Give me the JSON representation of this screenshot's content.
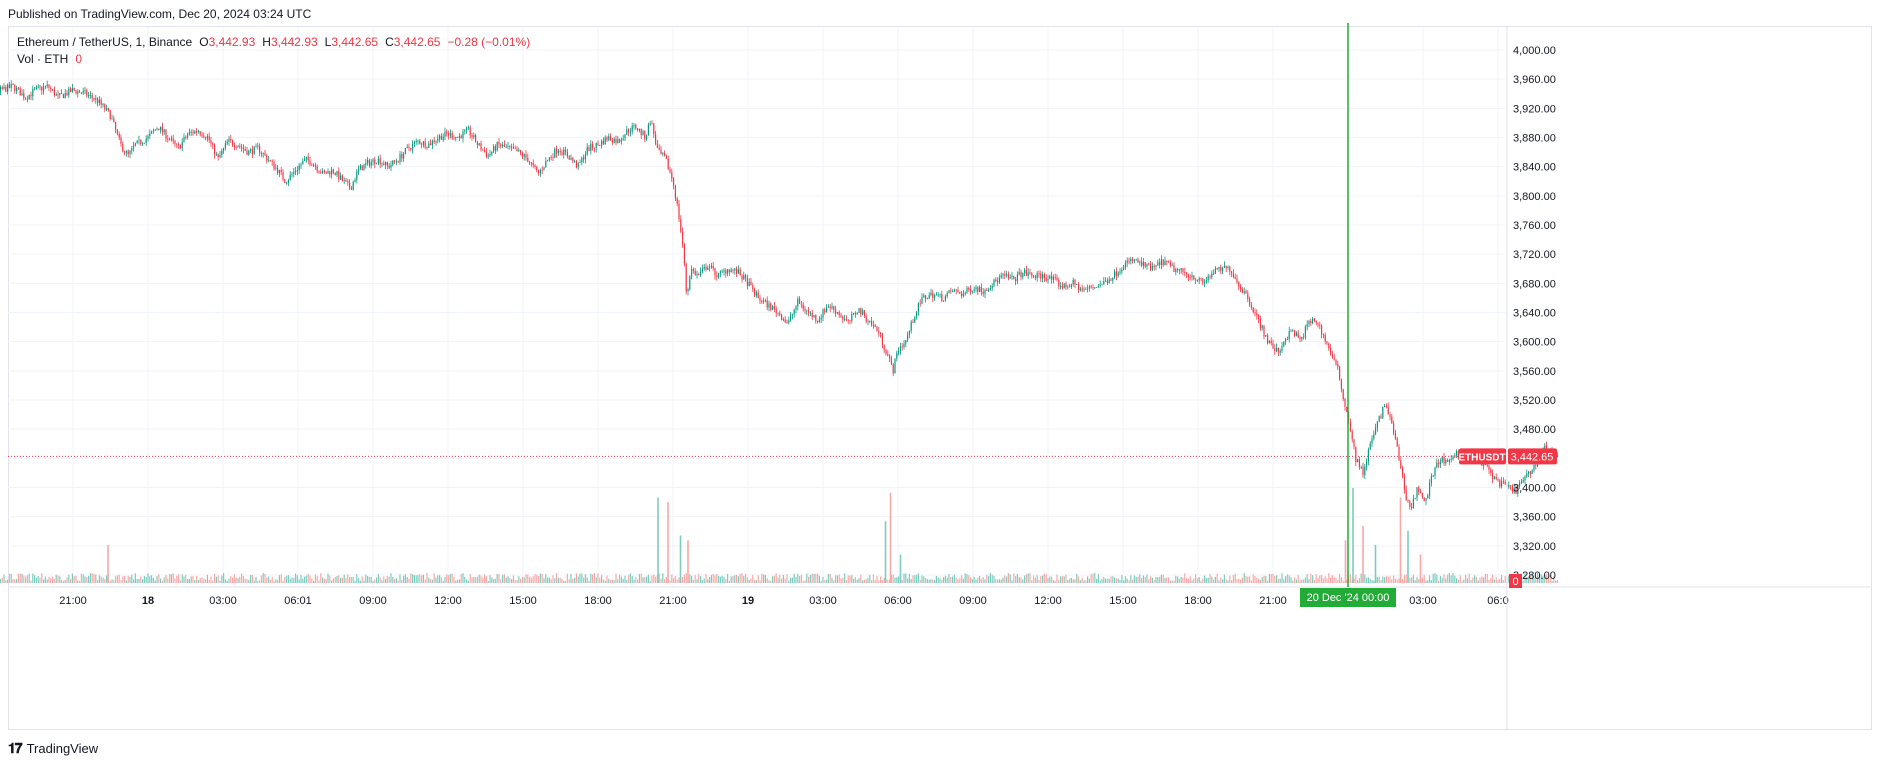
{
  "header": {
    "published": "Published on TradingView.com, Dec 20, 2024 03:24 UTC"
  },
  "legend": {
    "symbol": "Ethereum / TetherUS, 1, Binance",
    "o_label": "O",
    "o_value": "3,442.93",
    "h_label": "H",
    "h_value": "3,442.93",
    "l_label": "L",
    "l_value": "3,442.65",
    "c_label": "C",
    "c_value": "3,442.65",
    "change": "−0.28 (−0.01%)",
    "vol_label": "Vol · ETH",
    "vol_value": "0"
  },
  "footer": {
    "brand": "TradingView"
  },
  "colors": {
    "up": "#089981",
    "down": "#f23645",
    "vol_up": "#7ccdc0",
    "vol_down": "#f7a9a7",
    "crosshair": "#22ab36",
    "grid": "#f0f3fa"
  },
  "chart_data": {
    "type": "candlestick",
    "symbol": "ETHUSDT",
    "interval": "1",
    "last_price": 3442.65,
    "last_price_label": "3,442.65",
    "symbol_tag": "ETHUSDT",
    "volume_last_label": "0",
    "ylim": [
      3260,
      4020
    ],
    "y_ticks": [
      {
        "v": 4000,
        "label": "4,000.00"
      },
      {
        "v": 3960,
        "label": "3,960.00"
      },
      {
        "v": 3920,
        "label": "3,920.00"
      },
      {
        "v": 3880,
        "label": "3,880.00"
      },
      {
        "v": 3840,
        "label": "3,840.00"
      },
      {
        "v": 3800,
        "label": "3,800.00"
      },
      {
        "v": 3760,
        "label": "3,760.00"
      },
      {
        "v": 3720,
        "label": "3,720.00"
      },
      {
        "v": 3680,
        "label": "3,680.00"
      },
      {
        "v": 3640,
        "label": "3,640.00"
      },
      {
        "v": 3600,
        "label": "3,600.00"
      },
      {
        "v": 3560,
        "label": "3,560.00"
      },
      {
        "v": 3520,
        "label": "3,520.00"
      },
      {
        "v": 3480,
        "label": "3,480.00"
      },
      {
        "v": 3440,
        "label": "3,440.00"
      },
      {
        "v": 3400,
        "label": "3,400.00"
      },
      {
        "v": 3360,
        "label": "3,360.00"
      },
      {
        "v": 3320,
        "label": "3,320.00"
      },
      {
        "v": 3280,
        "label": "3,280.00"
      }
    ],
    "x_range_hours": [
      -31.2,
      28.0
    ],
    "x_ticks": [
      {
        "h": -27,
        "label": "21:00"
      },
      {
        "h": -24,
        "label": "18",
        "bold": true
      },
      {
        "h": -21,
        "label": "03:00"
      },
      {
        "h": -18,
        "label": "06:01"
      },
      {
        "h": -15,
        "label": "09:00"
      },
      {
        "h": -12,
        "label": "12:00"
      },
      {
        "h": -9,
        "label": "15:00"
      },
      {
        "h": -6,
        "label": "18:00"
      },
      {
        "h": -3,
        "label": "21:00"
      },
      {
        "h": 0,
        "label": "19",
        "bold": true
      },
      {
        "h": 3,
        "label": "03:00"
      },
      {
        "h": 6,
        "label": "06:00"
      },
      {
        "h": 9,
        "label": "09:00"
      },
      {
        "h": 12,
        "label": "12:00"
      },
      {
        "h": 15,
        "label": "15:00"
      },
      {
        "h": 18,
        "label": "18:00"
      },
      {
        "h": 21,
        "label": "21:00"
      },
      {
        "h": 27,
        "label": "03:00"
      },
      {
        "h": 30,
        "label": "06:0"
      }
    ],
    "crosshair": {
      "h": 24,
      "label": "20 Dec '24   00:00"
    },
    "price_path": [
      [
        -31.2,
        3955
      ],
      [
        -30.7,
        3940
      ],
      [
        -30.3,
        3925
      ],
      [
        -29.9,
        3945
      ],
      [
        -29.4,
        3950
      ],
      [
        -28.9,
        3935
      ],
      [
        -28.5,
        3945
      ],
      [
        -28.0,
        3950
      ],
      [
        -27.6,
        3935
      ],
      [
        -27.0,
        3945
      ],
      [
        -26.5,
        3940
      ],
      [
        -26.0,
        3930
      ],
      [
        -25.5,
        3910
      ],
      [
        -25.1,
        3870
      ],
      [
        -24.8,
        3855
      ],
      [
        -24.5,
        3870
      ],
      [
        -24.0,
        3880
      ],
      [
        -23.6,
        3895
      ],
      [
        -23.2,
        3880
      ],
      [
        -22.8,
        3865
      ],
      [
        -22.4,
        3885
      ],
      [
        -22.0,
        3890
      ],
      [
        -21.6,
        3880
      ],
      [
        -21.2,
        3850
      ],
      [
        -20.8,
        3875
      ],
      [
        -20.4,
        3870
      ],
      [
        -20.0,
        3860
      ],
      [
        -19.6,
        3865
      ],
      [
        -19.2,
        3850
      ],
      [
        -18.8,
        3835
      ],
      [
        -18.5,
        3820
      ],
      [
        -18.1,
        3835
      ],
      [
        -17.7,
        3850
      ],
      [
        -17.4,
        3845
      ],
      [
        -17.0,
        3830
      ],
      [
        -16.6,
        3835
      ],
      [
        -16.2,
        3820
      ],
      [
        -15.9,
        3810
      ],
      [
        -15.6,
        3835
      ],
      [
        -15.2,
        3845
      ],
      [
        -14.8,
        3850
      ],
      [
        -14.4,
        3840
      ],
      [
        -14.0,
        3850
      ],
      [
        -13.6,
        3865
      ],
      [
        -13.2,
        3875
      ],
      [
        -12.8,
        3870
      ],
      [
        -12.4,
        3880
      ],
      [
        -12.0,
        3885
      ],
      [
        -11.6,
        3880
      ],
      [
        -11.2,
        3890
      ],
      [
        -10.8,
        3870
      ],
      [
        -10.4,
        3855
      ],
      [
        -10.0,
        3870
      ],
      [
        -9.6,
        3865
      ],
      [
        -9.2,
        3860
      ],
      [
        -8.8,
        3850
      ],
      [
        -8.4,
        3830
      ],
      [
        -8.0,
        3850
      ],
      [
        -7.6,
        3865
      ],
      [
        -7.2,
        3855
      ],
      [
        -6.8,
        3840
      ],
      [
        -6.4,
        3865
      ],
      [
        -6.0,
        3870
      ],
      [
        -5.6,
        3880
      ],
      [
        -5.2,
        3875
      ],
      [
        -4.8,
        3890
      ],
      [
        -4.5,
        3895
      ],
      [
        -4.1,
        3880
      ],
      [
        -3.9,
        3905
      ],
      [
        -3.6,
        3860
      ],
      [
        -3.3,
        3850
      ],
      [
        -3.0,
        3820
      ],
      [
        -2.8,
        3780
      ],
      [
        -2.6,
        3730
      ],
      [
        -2.45,
        3660
      ],
      [
        -2.3,
        3700
      ],
      [
        -2.0,
        3690
      ],
      [
        -1.6,
        3705
      ],
      [
        -1.2,
        3690
      ],
      [
        -0.8,
        3700
      ],
      [
        -0.4,
        3695
      ],
      [
        0.0,
        3680
      ],
      [
        0.4,
        3660
      ],
      [
        0.8,
        3650
      ],
      [
        1.2,
        3640
      ],
      [
        1.6,
        3625
      ],
      [
        2.0,
        3655
      ],
      [
        2.4,
        3640
      ],
      [
        2.8,
        3630
      ],
      [
        3.2,
        3650
      ],
      [
        3.6,
        3640
      ],
      [
        4.0,
        3625
      ],
      [
        4.4,
        3645
      ],
      [
        4.8,
        3630
      ],
      [
        5.2,
        3615
      ],
      [
        5.6,
        3580
      ],
      [
        5.8,
        3560
      ],
      [
        6.0,
        3590
      ],
      [
        6.3,
        3600
      ],
      [
        6.7,
        3640
      ],
      [
        7.0,
        3660
      ],
      [
        7.4,
        3665
      ],
      [
        7.8,
        3660
      ],
      [
        8.2,
        3670
      ],
      [
        8.6,
        3665
      ],
      [
        9.0,
        3675
      ],
      [
        9.4,
        3670
      ],
      [
        9.8,
        3680
      ],
      [
        10.2,
        3690
      ],
      [
        10.6,
        3685
      ],
      [
        11.0,
        3695
      ],
      [
        11.4,
        3690
      ],
      [
        11.8,
        3690
      ],
      [
        12.2,
        3685
      ],
      [
        12.6,
        3675
      ],
      [
        13.0,
        3680
      ],
      [
        13.4,
        3670
      ],
      [
        13.8,
        3675
      ],
      [
        14.2,
        3680
      ],
      [
        14.6,
        3690
      ],
      [
        15.0,
        3705
      ],
      [
        15.4,
        3712
      ],
      [
        15.8,
        3705
      ],
      [
        16.2,
        3700
      ],
      [
        16.6,
        3710
      ],
      [
        17.0,
        3700
      ],
      [
        17.4,
        3695
      ],
      [
        17.8,
        3690
      ],
      [
        18.2,
        3680
      ],
      [
        18.6,
        3695
      ],
      [
        19.0,
        3700
      ],
      [
        19.3,
        3700
      ],
      [
        19.6,
        3680
      ],
      [
        20.0,
        3660
      ],
      [
        20.4,
        3630
      ],
      [
        20.8,
        3600
      ],
      [
        21.2,
        3585
      ],
      [
        21.5,
        3605
      ],
      [
        21.8,
        3615
      ],
      [
        22.1,
        3600
      ],
      [
        22.4,
        3625
      ],
      [
        22.7,
        3630
      ],
      [
        23.0,
        3610
      ],
      [
        23.3,
        3585
      ],
      [
        23.6,
        3560
      ],
      [
        23.9,
        3510
      ],
      [
        24.1,
        3480
      ],
      [
        24.3,
        3440
      ],
      [
        24.6,
        3420
      ],
      [
        24.9,
        3460
      ],
      [
        25.2,
        3490
      ],
      [
        25.5,
        3515
      ],
      [
        25.8,
        3480
      ],
      [
        26.1,
        3430
      ],
      [
        26.3,
        3390
      ],
      [
        26.5,
        3370
      ],
      [
        26.8,
        3400
      ],
      [
        27.1,
        3380
      ],
      [
        27.4,
        3420
      ],
      [
        27.7,
        3440
      ],
      [
        28.0,
        3430
      ],
      [
        28.3,
        3450
      ],
      [
        28.6,
        3435
      ],
      [
        28.9,
        3445
      ],
      [
        29.2,
        3440
      ],
      [
        29.5,
        3430
      ],
      [
        29.8,
        3415
      ],
      [
        30.1,
        3405
      ],
      [
        30.4,
        3400
      ],
      [
        30.7,
        3395
      ],
      [
        31.0,
        3410
      ],
      [
        31.3,
        3420
      ],
      [
        31.6,
        3440
      ],
      [
        31.9,
        3455
      ],
      [
        32.2,
        3448
      ],
      [
        32.4,
        3442.65
      ]
    ],
    "volume_spikes": [
      {
        "h": -25.6,
        "v": 40
      },
      {
        "h": -3.6,
        "v": 90
      },
      {
        "h": -3.2,
        "v": 85
      },
      {
        "h": -2.7,
        "v": 50
      },
      {
        "h": -2.4,
        "v": 45
      },
      {
        "h": 5.5,
        "v": 65
      },
      {
        "h": 5.7,
        "v": 95
      },
      {
        "h": 6.1,
        "v": 30
      },
      {
        "h": 23.9,
        "v": 45
      },
      {
        "h": 24.2,
        "v": 100
      },
      {
        "h": 24.6,
        "v": 60
      },
      {
        "h": 25.1,
        "v": 40
      },
      {
        "h": 26.1,
        "v": 90
      },
      {
        "h": 26.4,
        "v": 55
      },
      {
        "h": 26.9,
        "v": 30
      }
    ]
  }
}
